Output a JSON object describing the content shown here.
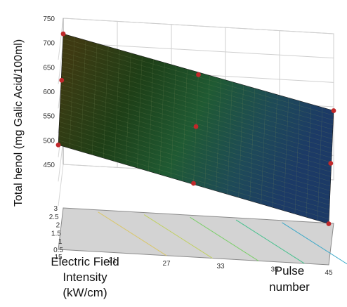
{
  "chart_data": {
    "type": "surface3d",
    "ylabel": "Total henol (mg Galic Acid/100ml)",
    "xlabel_lines": [
      "Electric Field",
      "Intensity",
      "(kW/cm)"
    ],
    "plabel_lines": [
      "Pulse",
      "number"
    ],
    "z_ticks": [
      "450",
      "500",
      "550",
      "600",
      "650",
      "700",
      "750"
    ],
    "e_ticks": [
      "0.5",
      "1",
      "1.5",
      "2",
      "2.5",
      "3"
    ],
    "p_ticks": [
      "15",
      "21",
      "27",
      "33",
      "39",
      "45"
    ],
    "zlim": [
      450,
      750
    ],
    "e_range": [
      0.5,
      3
    ],
    "p_range": [
      15,
      45
    ],
    "surface": {
      "corners": [
        {
          "e": 3,
          "p": 15,
          "z": 718
        },
        {
          "e": 3,
          "p": 45,
          "z": 592
        },
        {
          "e": 0.5,
          "p": 15,
          "z": 575
        },
        {
          "e": 0.5,
          "p": 45,
          "z": 445
        }
      ]
    },
    "points": [
      {
        "e": 3,
        "p": 15,
        "z": 718
      },
      {
        "e": 3,
        "p": 30,
        "z": 650
      },
      {
        "e": 2.2,
        "p": 15,
        "z": 650
      },
      {
        "e": 1.75,
        "p": 30,
        "z": 586
      },
      {
        "e": 3,
        "p": 45,
        "z": 592
      },
      {
        "e": 0.5,
        "p": 15,
        "z": 575
      },
      {
        "e": 1.5,
        "p": 45,
        "z": 535
      },
      {
        "e": 0.5,
        "p": 30,
        "z": 512
      },
      {
        "e": 0.5,
        "p": 45,
        "z": 445
      }
    ],
    "contour_colors": [
      "#d9c76a",
      "#c0d060",
      "#7ccf6a",
      "#44c08c",
      "#3aa8c8"
    ],
    "point_color": "#c0282a",
    "grid": true
  }
}
